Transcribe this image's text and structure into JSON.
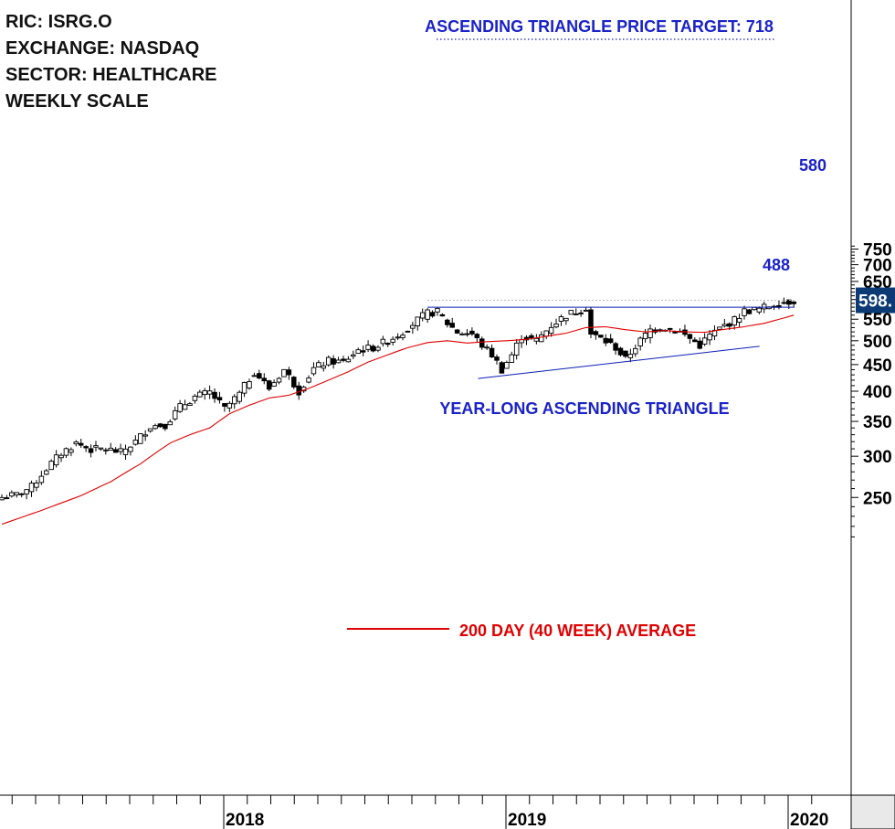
{
  "info": {
    "ric": "RIC: ISRG.O",
    "exchange": "EXCHANGE: NASDAQ",
    "sector": "SECTOR: HEALTHCARE",
    "scale": "WEEKLY SCALE"
  },
  "chart_data": {
    "type": "candlestick",
    "scale": "log",
    "ylim": [
      200,
      760
    ],
    "y_ticks": [
      250,
      300,
      350,
      400,
      450,
      500,
      550,
      600,
      650,
      700,
      750
    ],
    "y_tick_labels": [
      "250",
      "300",
      "350",
      "400",
      "450",
      "500",
      "550",
      "",
      "650",
      "700",
      "750"
    ],
    "x_labels": [
      {
        "label": "2018",
        "date": "2018-01-01"
      },
      {
        "label": "2019",
        "date": "2019-01-01"
      },
      {
        "label": "2020",
        "date": "2020-01-01"
      }
    ],
    "last_price_label": "598.",
    "last_price": 598,
    "annotations": {
      "target": "ASCENDING TRIANGLE PRICE TARGET: 718",
      "pattern": "YEAR-LONG ASCENDING TRIANGLE",
      "resistance_label": "580",
      "support_label": "488",
      "ma_label": "200 DAY (40 WEEK) AVERAGE"
    },
    "resistance": 580,
    "support_line": {
      "start": {
        "date": "2018-11-26",
        "value": 423
      },
      "end": {
        "date": "2019-11-25",
        "value": 488
      }
    },
    "colors": {
      "ma": "#e00000",
      "trend": "#0a1fb4",
      "text_blue": "#1a22c8",
      "label_bg": "#0b3a74"
    },
    "close_waypoints": [
      [
        0,
        250
      ],
      [
        3,
        253
      ],
      [
        6,
        262
      ],
      [
        9,
        284
      ],
      [
        12,
        304
      ],
      [
        15,
        318
      ],
      [
        18,
        309
      ],
      [
        21,
        310
      ],
      [
        24,
        305
      ],
      [
        27,
        320
      ],
      [
        30,
        343
      ],
      [
        33,
        345
      ],
      [
        36,
        373
      ],
      [
        39,
        390
      ],
      [
        42,
        398
      ],
      [
        45,
        370
      ],
      [
        48,
        395
      ],
      [
        51,
        436
      ],
      [
        54,
        405
      ],
      [
        57,
        440
      ],
      [
        60,
        400
      ],
      [
        63,
        442
      ],
      [
        66,
        457
      ],
      [
        69,
        455
      ],
      [
        72,
        480
      ],
      [
        75,
        485
      ],
      [
        78,
        500
      ],
      [
        81,
        520
      ],
      [
        84,
        548
      ],
      [
        86,
        565
      ],
      [
        88,
        568
      ],
      [
        90,
        540
      ],
      [
        92,
        520
      ],
      [
        95,
        515
      ],
      [
        97,
        490
      ],
      [
        99,
        470
      ],
      [
        101,
        440
      ],
      [
        103,
        470
      ],
      [
        105,
        510
      ],
      [
        108,
        500
      ],
      [
        111,
        535
      ],
      [
        114,
        560
      ],
      [
        117,
        574
      ],
      [
        118,
        580
      ],
      [
        119,
        515
      ],
      [
        121,
        505
      ],
      [
        124,
        485
      ],
      [
        126,
        460
      ],
      [
        128,
        488
      ],
      [
        131,
        525
      ],
      [
        134,
        530
      ],
      [
        137,
        520
      ],
      [
        139,
        505
      ],
      [
        141,
        490
      ],
      [
        143,
        512
      ],
      [
        146,
        535
      ],
      [
        148,
        548
      ],
      [
        150,
        570
      ],
      [
        153,
        575
      ],
      [
        156,
        588
      ],
      [
        158,
        592
      ],
      [
        160,
        598
      ]
    ],
    "ma_waypoints": [
      [
        0,
        222
      ],
      [
        8,
        236
      ],
      [
        16,
        252
      ],
      [
        22,
        268
      ],
      [
        28,
        290
      ],
      [
        34,
        318
      ],
      [
        38,
        330
      ],
      [
        42,
        340
      ],
      [
        46,
        362
      ],
      [
        50,
        376
      ],
      [
        54,
        388
      ],
      [
        58,
        393
      ],
      [
        62,
        405
      ],
      [
        66,
        420
      ],
      [
        70,
        436
      ],
      [
        74,
        455
      ],
      [
        78,
        470
      ],
      [
        82,
        485
      ],
      [
        86,
        496
      ],
      [
        90,
        500
      ],
      [
        94,
        495
      ],
      [
        98,
        498
      ],
      [
        102,
        500
      ],
      [
        106,
        503
      ],
      [
        110,
        510
      ],
      [
        114,
        517
      ],
      [
        118,
        530
      ],
      [
        122,
        532
      ],
      [
        126,
        525
      ],
      [
        130,
        520
      ],
      [
        134,
        523
      ],
      [
        138,
        520
      ],
      [
        142,
        519
      ],
      [
        146,
        526
      ],
      [
        150,
        532
      ],
      [
        154,
        540
      ],
      [
        158,
        553
      ],
      [
        160,
        560
      ]
    ]
  }
}
